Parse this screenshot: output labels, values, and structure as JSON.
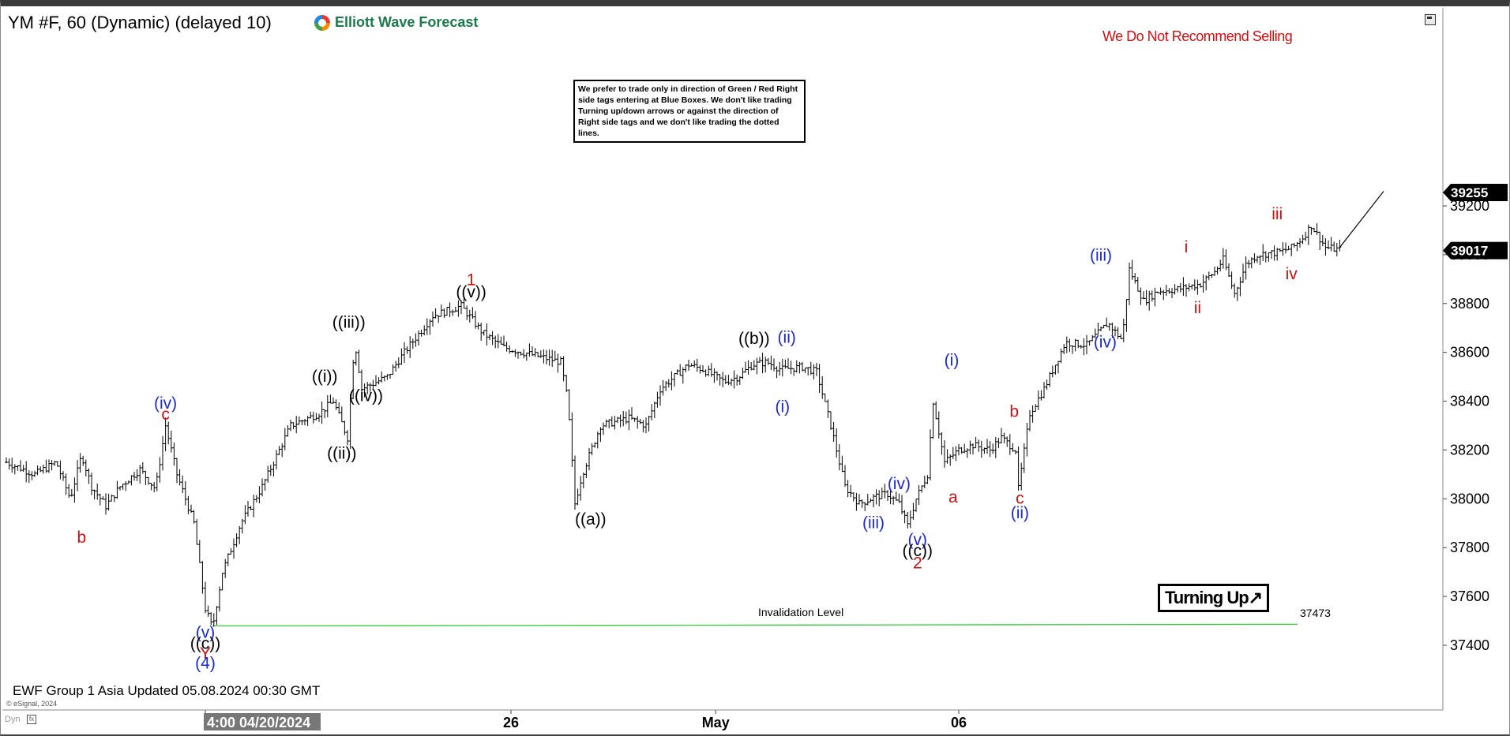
{
  "header": {
    "title": "YM #F, 60 (Dynamic) (delayed 10)",
    "brand": "Elliott Wave Forecast"
  },
  "notice": "We prefer to trade only in direction of Green / Red Right side tags entering at Blue Boxes. We don't like trading Turning up/down arrows or against the direction of Right side tags and we don't like trading the dotted lines.",
  "warning": "We Do Not Recommend Selling",
  "footer": {
    "updated": "EWF Group 1 Asia Updated 05.08.2024 00:30 GMT",
    "copyright": "© eSignal, 2024",
    "dyn": "Dyn"
  },
  "badge": {
    "turning": "Turning Up",
    "arrow_icon": "arrow-up-right-icon"
  },
  "invalidation": {
    "label": "Invalidation Level",
    "value": "37473"
  },
  "colors": {
    "black_labels": "#000000",
    "blue_labels": "#1a2ad0",
    "red_labels": "#d01010",
    "invalidation_line": "#33cc33",
    "warning": "#d01010",
    "brand": "#1b7a4a"
  },
  "chart_data": {
    "type": "ohlc",
    "symbol": "YM #F",
    "interval": "60",
    "y_ticks": [
      37400,
      37600,
      37800,
      38000,
      38200,
      38400,
      38600,
      38800,
      39000,
      39200
    ],
    "x_labels": [
      "4:00 04/20/2024",
      "26",
      "May",
      "06"
    ],
    "last_high": "39255",
    "last_price": "39017",
    "invalidation_level": 37473,
    "bar_keypoints": [
      [
        0,
        38150
      ],
      [
        20,
        38100
      ],
      [
        35,
        38150
      ],
      [
        45,
        38000
      ],
      [
        53,
        38180
      ],
      [
        60,
        38050
      ],
      [
        70,
        37970
      ],
      [
        80,
        38050
      ],
      [
        94,
        38120
      ],
      [
        105,
        38040
      ],
      [
        112,
        38300
      ],
      [
        120,
        38100
      ],
      [
        132,
        37900
      ],
      [
        140,
        37550
      ],
      [
        145,
        37470
      ],
      [
        152,
        37700
      ],
      [
        165,
        37900
      ],
      [
        180,
        38050
      ],
      [
        200,
        38300
      ],
      [
        220,
        38350
      ],
      [
        230,
        38400
      ],
      [
        240,
        38250
      ],
      [
        245,
        38650
      ],
      [
        250,
        38450
      ],
      [
        268,
        38500
      ],
      [
        280,
        38600
      ],
      [
        300,
        38750
      ],
      [
        320,
        38790
      ],
      [
        335,
        38680
      ],
      [
        350,
        38620
      ],
      [
        370,
        38590
      ],
      [
        390,
        38560
      ],
      [
        395,
        38400
      ],
      [
        400,
        37980
      ],
      [
        405,
        38100
      ],
      [
        418,
        38300
      ],
      [
        438,
        38330
      ],
      [
        450,
        38300
      ],
      [
        460,
        38450
      ],
      [
        480,
        38550
      ],
      [
        490,
        38530
      ],
      [
        505,
        38480
      ],
      [
        515,
        38500
      ],
      [
        525,
        38550
      ],
      [
        535,
        38560
      ],
      [
        545,
        38530
      ],
      [
        560,
        38540
      ],
      [
        570,
        38520
      ],
      [
        580,
        38300
      ],
      [
        590,
        38050
      ],
      [
        600,
        37980
      ],
      [
        612,
        38010
      ],
      [
        620,
        38020
      ],
      [
        628,
        37980
      ],
      [
        634,
        37890
      ],
      [
        640,
        38000
      ],
      [
        648,
        38100
      ],
      [
        652,
        38400
      ],
      [
        660,
        38150
      ],
      [
        670,
        38200
      ],
      [
        680,
        38220
      ],
      [
        692,
        38200
      ],
      [
        700,
        38250
      ],
      [
        710,
        38200
      ],
      [
        712,
        38040
      ],
      [
        720,
        38350
      ],
      [
        730,
        38450
      ],
      [
        745,
        38640
      ],
      [
        760,
        38630
      ],
      [
        775,
        38720
      ],
      [
        785,
        38650
      ],
      [
        790,
        38940
      ],
      [
        800,
        38810
      ],
      [
        810,
        38850
      ],
      [
        825,
        38860
      ],
      [
        840,
        38880
      ],
      [
        850,
        38930
      ],
      [
        856,
        38980
      ],
      [
        864,
        38840
      ],
      [
        872,
        38960
      ],
      [
        880,
        39000
      ],
      [
        895,
        39010
      ],
      [
        905,
        39030
      ],
      [
        912,
        39070
      ],
      [
        918,
        39120
      ],
      [
        928,
        39030
      ],
      [
        938,
        39020
      ]
    ],
    "wave_labels": [
      {
        "text": "b",
        "color": "red",
        "price": 37820,
        "bar": 53
      },
      {
        "text": "(iv)",
        "color": "blue",
        "price": 38370,
        "bar": 112
      },
      {
        "text": "c",
        "color": "red",
        "price": 38325,
        "bar": 112
      },
      {
        "text": "(v)",
        "color": "blue",
        "price": 37430,
        "bar": 140
      },
      {
        "text": "((c))",
        "color": "black",
        "price": 37385,
        "bar": 140
      },
      {
        "text": "Y",
        "color": "red",
        "price": 37345,
        "bar": 140
      },
      {
        "text": "(4)",
        "color": "blue",
        "price": 37305,
        "bar": 140
      },
      {
        "text": "((i))",
        "color": "black",
        "price": 38480,
        "bar": 224
      },
      {
        "text": "((ii))",
        "color": "black",
        "price": 38165,
        "bar": 236
      },
      {
        "text": "((iii))",
        "color": "black",
        "price": 38700,
        "bar": 241
      },
      {
        "text": "((iv))",
        "color": "black",
        "price": 38400,
        "bar": 253
      },
      {
        "text": "1",
        "color": "red",
        "price": 38875,
        "bar": 327
      },
      {
        "text": "((v))",
        "color": "black",
        "price": 38825,
        "bar": 327
      },
      {
        "text": "((a))",
        "color": "black",
        "price": 37895,
        "bar": 411
      },
      {
        "text": "((b))",
        "color": "black",
        "price": 38635,
        "bar": 526
      },
      {
        "text": "(ii)",
        "color": "blue",
        "price": 38640,
        "bar": 549
      },
      {
        "text": "(i)",
        "color": "blue",
        "price": 38355,
        "bar": 546
      },
      {
        "text": "(iii)",
        "color": "blue",
        "price": 37880,
        "bar": 610
      },
      {
        "text": "(iv)",
        "color": "blue",
        "price": 38040,
        "bar": 628
      },
      {
        "text": "(v)",
        "color": "blue",
        "price": 37810,
        "bar": 641
      },
      {
        "text": "((c))",
        "color": "black",
        "price": 37765,
        "bar": 641
      },
      {
        "text": "2",
        "color": "red",
        "price": 37715,
        "bar": 641
      },
      {
        "text": "(i)",
        "color": "blue",
        "price": 38545,
        "bar": 665
      },
      {
        "text": "a",
        "color": "red",
        "price": 37985,
        "bar": 666
      },
      {
        "text": "b",
        "color": "red",
        "price": 38335,
        "bar": 709
      },
      {
        "text": "c",
        "color": "red",
        "price": 37980,
        "bar": 713
      },
      {
        "text": "(ii)",
        "color": "blue",
        "price": 37920,
        "bar": 713
      },
      {
        "text": "(iii)",
        "color": "blue",
        "price": 38975,
        "bar": 770
      },
      {
        "text": "(iv)",
        "color": "blue",
        "price": 38620,
        "bar": 773
      },
      {
        "text": "i",
        "color": "red",
        "price": 39010,
        "bar": 830
      },
      {
        "text": "ii",
        "color": "red",
        "price": 38760,
        "bar": 838
      },
      {
        "text": "iii",
        "color": "red",
        "price": 39145,
        "bar": 894
      },
      {
        "text": "iv",
        "color": "red",
        "price": 38900,
        "bar": 904
      }
    ]
  }
}
